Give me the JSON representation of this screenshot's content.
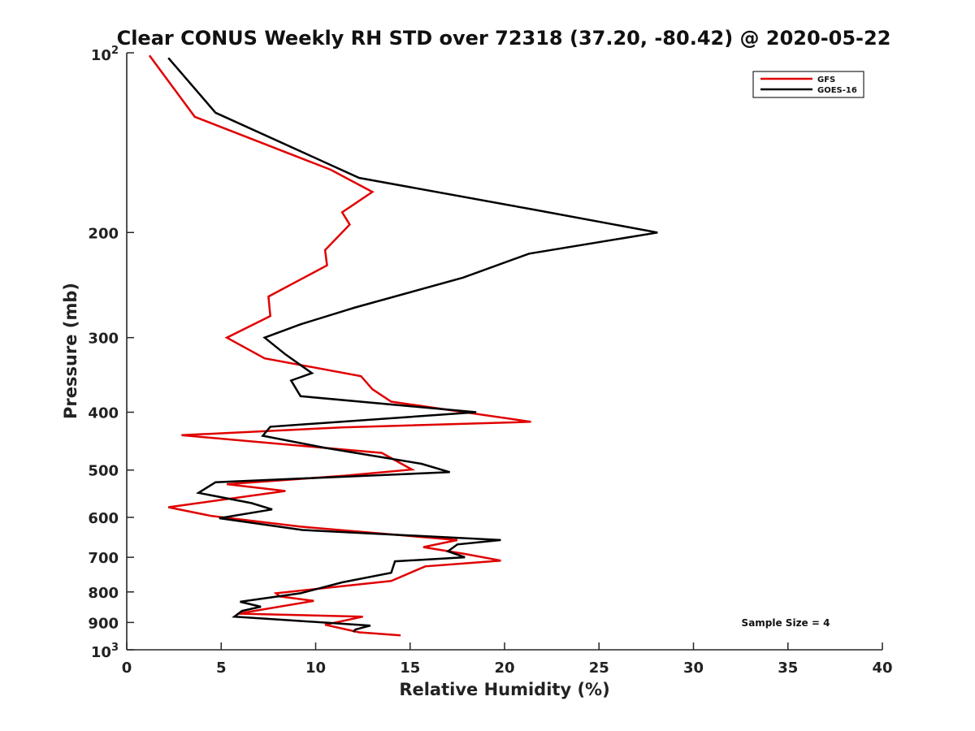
{
  "chart_data": {
    "type": "line",
    "title": "Clear CONUS Weekly RH STD over 72318 (37.20, -80.42) @ 2020-05-22",
    "xlabel": "Relative Humidity (%)",
    "ylabel": "Pressure (mb)",
    "xlim": [
      0,
      40
    ],
    "ylim": [
      100,
      1000
    ],
    "y_scale": "log",
    "y_reversed": true,
    "x_ticks": [
      "0",
      "5",
      "10",
      "15",
      "20",
      "25",
      "30",
      "35",
      "40"
    ],
    "y_ticks": [
      {
        "value": 100,
        "base": "10",
        "exp": "2"
      },
      {
        "value": 200,
        "label": "200"
      },
      {
        "value": 300,
        "label": "300"
      },
      {
        "value": 400,
        "label": "400"
      },
      {
        "value": 500,
        "label": "500"
      },
      {
        "value": 600,
        "label": "600"
      },
      {
        "value": 700,
        "label": "700"
      },
      {
        "value": 800,
        "label": "800"
      },
      {
        "value": 900,
        "label": "900"
      },
      {
        "value": 1000,
        "base": "10",
        "exp": "3"
      }
    ],
    "grid": false,
    "legend_position": "top-right",
    "series": [
      {
        "name": "GFS",
        "color": "#e00000",
        "x": [
          1.2,
          3.6,
          10.8,
          13.0,
          11.4,
          11.8,
          10.5,
          10.6,
          7.5,
          7.6,
          5.3,
          7.3,
          12.4,
          13.0,
          14.0,
          21.4,
          11.5,
          2.9,
          13.5,
          15.1,
          11.5,
          5.3,
          8.4,
          2.2,
          4.5,
          9.2,
          17.5,
          15.7,
          17.9,
          19.8,
          15.8,
          14.0,
          7.9,
          8.1,
          9.9,
          5.9,
          12.5,
          10.5,
          12.3,
          14.5
        ],
        "y": [
          101,
          128,
          157,
          171,
          185,
          194,
          214,
          227,
          256,
          276,
          300,
          325,
          348,
          366,
          384,
          415,
          424,
          437,
          468,
          499,
          511,
          528,
          542,
          577,
          597,
          622,
          655,
          673,
          691,
          709,
          725,
          767,
          804,
          814,
          828,
          870,
          880,
          908,
          935,
          946
        ]
      },
      {
        "name": "GOES-16",
        "color": "#000000",
        "x": [
          2.2,
          4.7,
          12.3,
          21.5,
          28.1,
          21.3,
          17.8,
          12.1,
          9.2,
          7.3,
          8.4,
          9.8,
          8.7,
          9.2,
          18.5,
          7.6,
          7.2,
          10.5,
          15.6,
          17.1,
          4.7,
          3.8,
          6.6,
          7.7,
          4.9,
          9.3,
          19.8,
          17.5,
          17.0,
          17.9,
          14.2,
          14.0,
          11.4,
          9.2,
          6.0,
          7.1,
          6.1,
          5.7,
          12.9,
          12.1,
          12.0
        ],
        "y": [
          102,
          126,
          162,
          183,
          200,
          217,
          238,
          267,
          285,
          300,
          320,
          344,
          354,
          376,
          400,
          423,
          438,
          459,
          488,
          504,
          524,
          546,
          568,
          582,
          602,
          630,
          655,
          666,
          684,
          700,
          711,
          743,
          771,
          804,
          831,
          847,
          861,
          880,
          911,
          925,
          934
        ]
      }
    ],
    "annotations": [
      "Sample Size = 4"
    ]
  }
}
